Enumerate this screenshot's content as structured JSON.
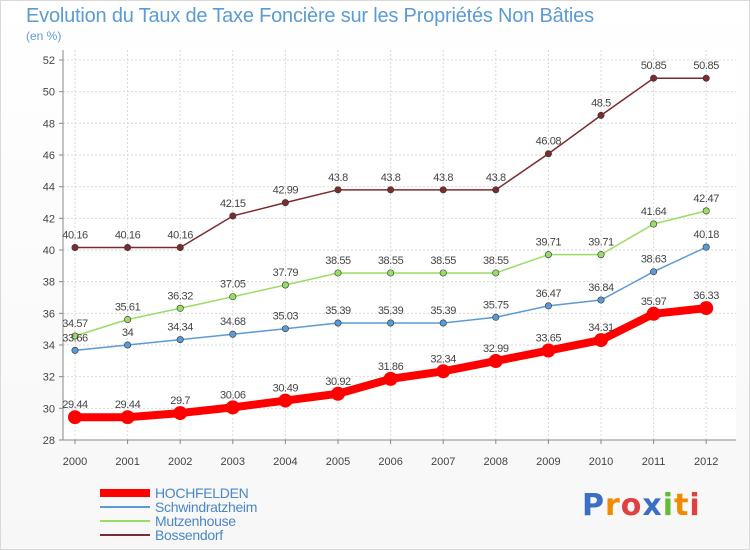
{
  "chart_data": {
    "type": "line",
    "title": "Evolution du Taux de Taxe Foncière sur les Propriétés Non Bâties",
    "subtitle": "(en %)",
    "xlabel": "",
    "ylabel": "",
    "categories": [
      "2000",
      "2001",
      "2002",
      "2003",
      "2004",
      "2005",
      "2006",
      "2007",
      "2008",
      "2009",
      "2010",
      "2011",
      "2012"
    ],
    "ylim": [
      28,
      52
    ],
    "yticks": [
      "28",
      "30",
      "32",
      "34",
      "36",
      "38",
      "40",
      "42",
      "44",
      "46",
      "48",
      "50",
      "52"
    ],
    "grid": true,
    "legend_position": "bottom-left",
    "series": [
      {
        "name": "HOCHFELDEN",
        "color": "#ff0000",
        "values": [
          29.44,
          29.44,
          29.7,
          30.06,
          30.49,
          30.92,
          31.86,
          32.34,
          32.99,
          33.65,
          34.31,
          35.97,
          36.33
        ],
        "labels": [
          "29.44",
          "29.44",
          "29.7",
          "30.06",
          "30.49",
          "30.92",
          "31.86",
          "32.34",
          "32.99",
          "33.65",
          "34.31",
          "35.97",
          "36.33"
        ]
      },
      {
        "name": "Schwindratzheim",
        "color": "#5b9bd5",
        "values": [
          33.66,
          34,
          34.34,
          34.68,
          35.03,
          35.39,
          35.39,
          35.39,
          35.75,
          36.47,
          36.84,
          38.63,
          40.18
        ],
        "labels": [
          "33.66",
          "34",
          "34.34",
          "34.68",
          "35.03",
          "35.39",
          "35.39",
          "35.39",
          "35.75",
          "36.47",
          "36.84",
          "38.63",
          "40.18"
        ]
      },
      {
        "name": "Mutzenhouse",
        "color": "#99dd66",
        "values": [
          34.57,
          35.61,
          36.32,
          37.05,
          37.79,
          38.55,
          38.55,
          38.55,
          38.55,
          39.71,
          39.71,
          41.64,
          42.47
        ],
        "labels": [
          "34.57",
          "35.61",
          "36.32",
          "37.05",
          "37.79",
          "38.55",
          "38.55",
          "38.55",
          "38.55",
          "39.71",
          "39.71",
          "41.64",
          "42.47"
        ]
      },
      {
        "name": "Bossendorf",
        "color": "#7b2c2c",
        "values": [
          40.16,
          40.16,
          40.16,
          42.15,
          42.99,
          43.8,
          43.8,
          43.8,
          43.8,
          46.08,
          48.5,
          50.85,
          50.85
        ],
        "labels": [
          "40.16",
          "40.16",
          "40.16",
          "42.15",
          "42.99",
          "43.8",
          "43.8",
          "43.8",
          "43.8",
          "46.08",
          "48.5",
          "50.85",
          "50.85"
        ]
      }
    ]
  },
  "logo": {
    "text": "Proxiti",
    "colors": [
      "#3a6fc4",
      "#f08a00",
      "#e04040",
      "#3a6fc4",
      "#66bb33",
      "#f08a00",
      "#e04040"
    ]
  }
}
